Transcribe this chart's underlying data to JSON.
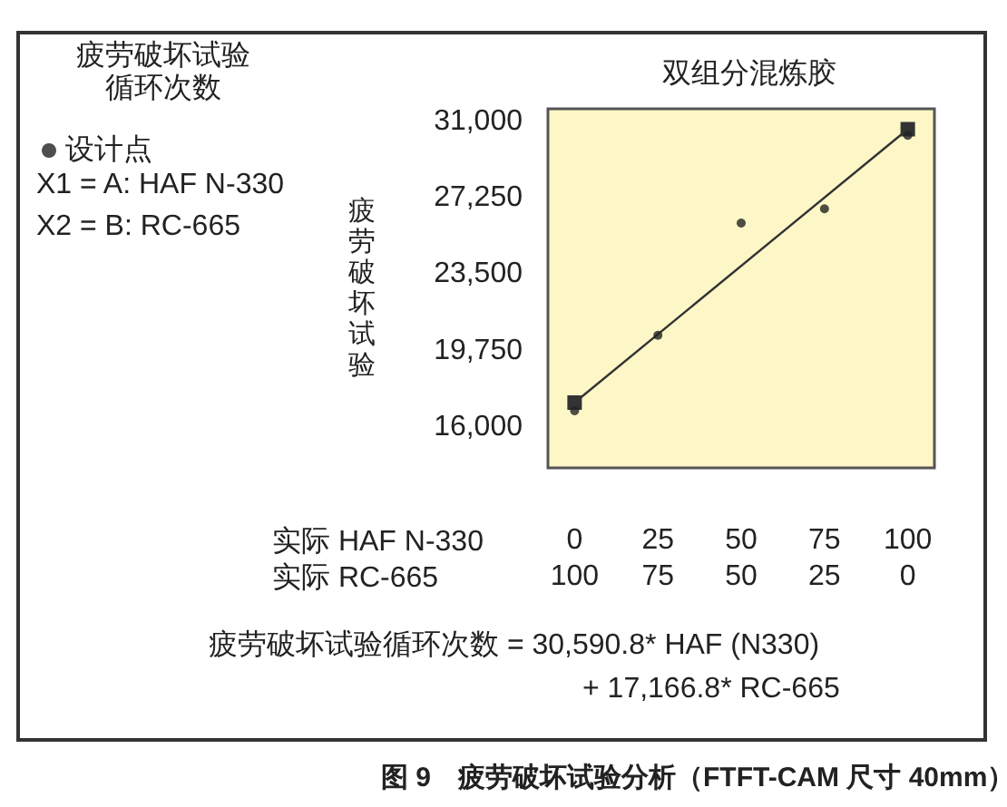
{
  "chart_data": {
    "type": "scatter",
    "title": "双组分混炼胶",
    "ylabel": "疲劳破坏试验",
    "xlabel": "实际 HAF N-330",
    "x2label": "实际 RC-665",
    "xlim": [
      -8,
      108
    ],
    "xticks": [
      0,
      25,
      50,
      75,
      100
    ],
    "x2lim": [
      108,
      -8
    ],
    "x2ticks": [
      0,
      25,
      50,
      75,
      100
    ],
    "ylim": [
      14000,
      31600
    ],
    "yticks": [
      {
        "value": 16000,
        "label": "16,000"
      },
      {
        "value": 19750,
        "label": "19,750"
      },
      {
        "value": 23500,
        "label": "23,500"
      },
      {
        "value": 27250,
        "label": "27,250"
      },
      {
        "value": 31000,
        "label": "31,000"
      }
    ],
    "series": [
      {
        "name": "设计点",
        "marker": "circle",
        "color": "#222222",
        "x": [
          0,
          25,
          50,
          75,
          100
        ],
        "values": [
          16800,
          20500,
          26000,
          26700,
          30300
        ]
      },
      {
        "type": "line",
        "marker": "square",
        "line_style": "solid",
        "color": "#333333",
        "x": [
          0,
          100
        ],
        "values": [
          17200,
          30600
        ]
      }
    ],
    "legend": "top left",
    "annotations": [
      "疲劳破坏试验",
      "循环次数",
      "X1 = A: HAF N-330",
      "X2 = B: RC-665",
      "疲劳破坏试验循环次数 = 30,590.8* HAF (N330)",
      "+ 17,166.8* RC-665",
      "图 9　疲劳破坏试验分析（FTFT-CAM 尺寸 40mm）"
    ]
  }
}
